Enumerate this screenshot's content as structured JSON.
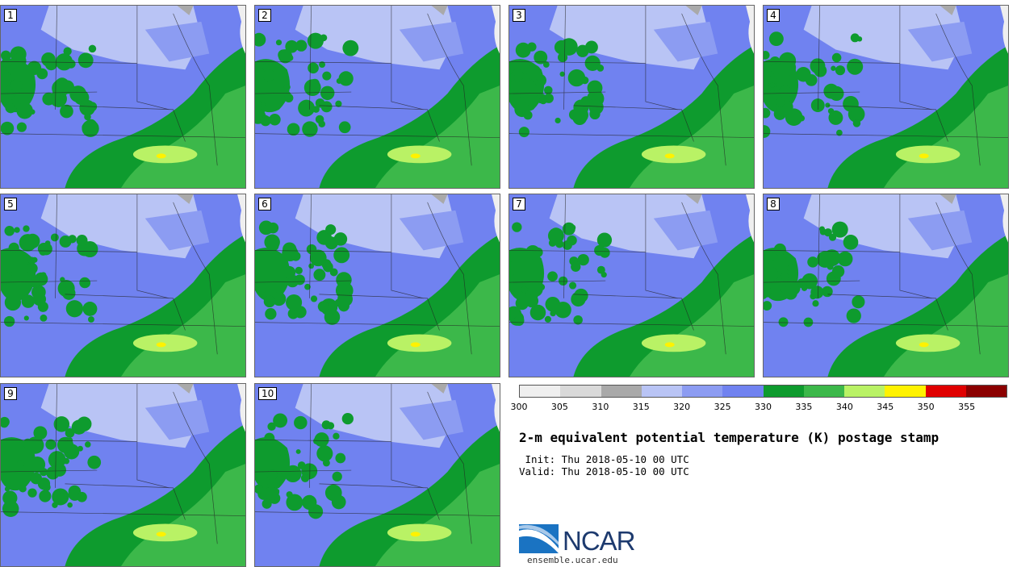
{
  "stamps": [
    {
      "label": "1"
    },
    {
      "label": "2"
    },
    {
      "label": "3"
    },
    {
      "label": "4"
    },
    {
      "label": "5"
    },
    {
      "label": "6"
    },
    {
      "label": "7"
    },
    {
      "label": "8"
    },
    {
      "label": "9"
    },
    {
      "label": "10"
    }
  ],
  "colorbar": {
    "colors": [
      "#efefef",
      "#d9d9d9",
      "#a9a9a9",
      "#b9c4f5",
      "#8c9cf2",
      "#7082f0",
      "#0e9b2e",
      "#3cb84a",
      "#b9f265",
      "#fff200",
      "#e00000",
      "#8b0000"
    ],
    "ticks": [
      "300",
      "305",
      "310",
      "315",
      "320",
      "325",
      "330",
      "335",
      "340",
      "345",
      "350",
      "355"
    ]
  },
  "title": "2-m equivalent potential temperature (K) postage stamp",
  "init_line": " Init: Thu 2018-05-10 00 UTC",
  "valid_line": "Valid: Thu 2018-05-10 00 UTC",
  "logo_text": "NCAR",
  "website": "ensemble.ucar.edu"
}
